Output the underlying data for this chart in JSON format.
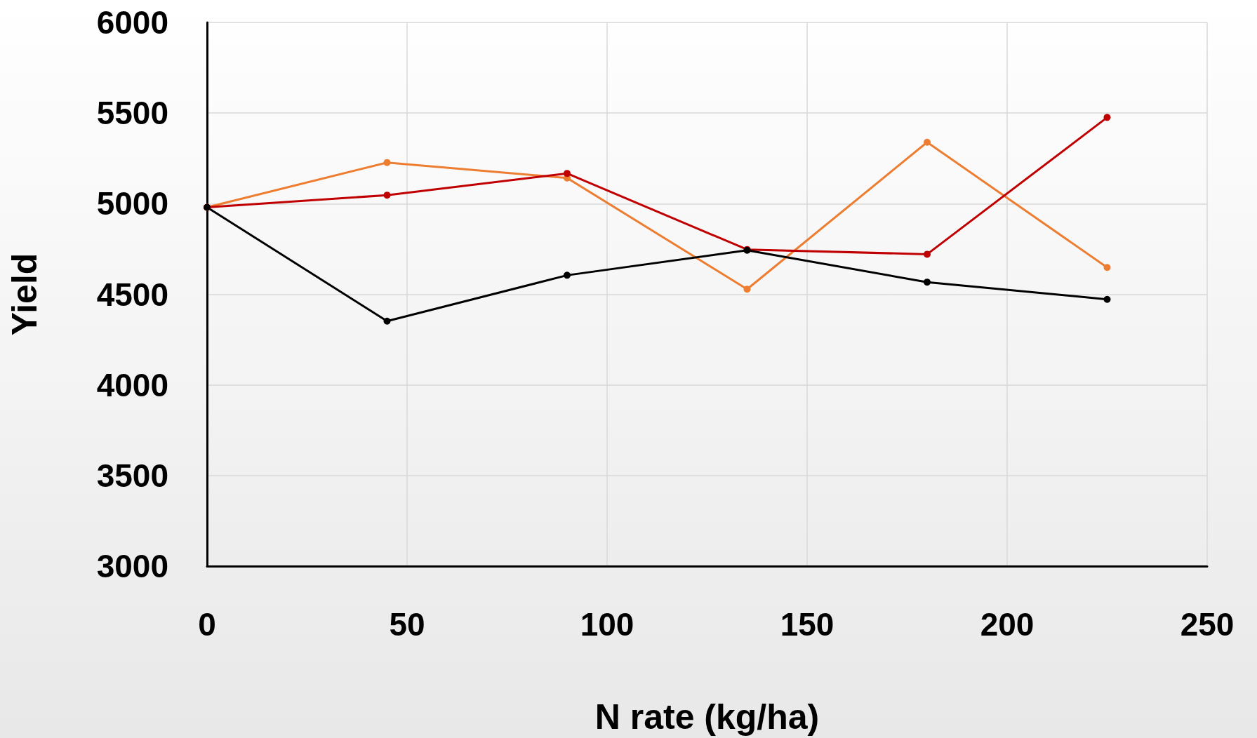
{
  "chart_data": {
    "type": "line",
    "xlabel": "N rate (kg/ha)",
    "ylabel": "Yield",
    "x": [
      0,
      45,
      90,
      135,
      180,
      225
    ],
    "series": [
      {
        "color": "#ed7d31",
        "values": [
          4980,
          5227,
          5142,
          4528,
          5339,
          4648
        ]
      },
      {
        "color": "#c00000",
        "values": [
          4980,
          5047,
          5167,
          4747,
          4721,
          5476
        ]
      },
      {
        "color": "#000000",
        "values": [
          4980,
          4352,
          4605,
          4743,
          4567,
          4472
        ]
      }
    ],
    "xlim": [
      0,
      250
    ],
    "xticks": [
      0,
      50,
      100,
      150,
      200,
      250
    ],
    "ylim": [
      3000,
      6000
    ],
    "yticks": [
      3000,
      3500,
      4000,
      4500,
      5000,
      5500,
      6000
    ],
    "grid": true,
    "marker": "circle",
    "line_style": "solid"
  }
}
